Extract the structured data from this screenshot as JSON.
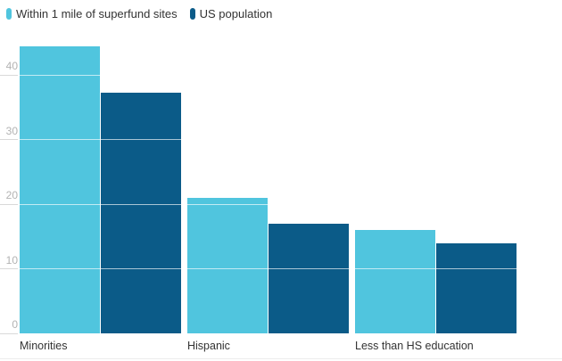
{
  "legend": {
    "items": [
      {
        "label": "Within 1 mile of superfund sites",
        "color": "#50c5de"
      },
      {
        "label": "US population",
        "color": "#0b5b88"
      }
    ]
  },
  "chart_data": {
    "type": "bar",
    "title": "",
    "xlabel": "",
    "ylabel": "",
    "categories": [
      "Minorities",
      "Hispanic",
      "Less than HS education"
    ],
    "series": [
      {
        "name": "Within 1 mile of superfund sites",
        "color": "#50c5de",
        "values": [
          44.4,
          20.9,
          16.0
        ]
      },
      {
        "name": "US population",
        "color": "#0b5b88",
        "values": [
          37.2,
          16.9,
          13.9
        ]
      }
    ],
    "yticks": [
      0,
      10,
      20,
      30,
      40
    ],
    "ylim": [
      0,
      45
    ],
    "grid": "horizontal gridlines; gray stubs in left margin, white lines over bars",
    "legend_position": "top-left"
  },
  "colors": {
    "background": "#ffffff",
    "series_light": "#50c5de",
    "series_dark": "#0b5b88",
    "axis_tick_label": "#b3b3b3",
    "category_label": "#333333",
    "gridline_gray": "#d9d9d9",
    "gridline_over_bars": "rgba(255,255,255,0.65)",
    "bottom_rule": "#ececec"
  }
}
